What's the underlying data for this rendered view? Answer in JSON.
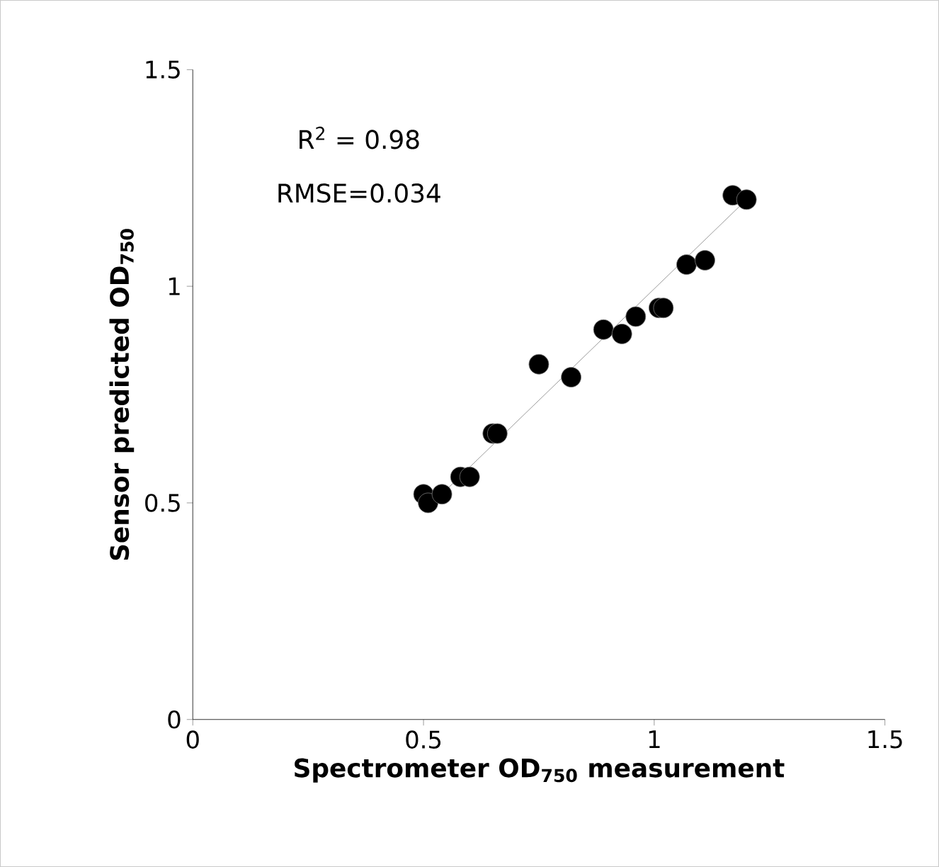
{
  "chart_data": {
    "type": "scatter",
    "xlabel": "Spectrometer OD$_{750}$ measurement",
    "ylabel": "Sensor predicted OD$_{750}$",
    "annotations": [
      "R$^{2}$ = 0.98",
      "RMSE=0.034"
    ],
    "xlim": [
      0,
      1.5
    ],
    "ylim": [
      0,
      1.5
    ],
    "xticks": [
      0,
      0.5,
      1,
      1.5
    ],
    "yticks": [
      0,
      0.5,
      1,
      1.5
    ],
    "grid": false,
    "series": [
      {
        "color": "#000000",
        "x": [
          0.5,
          0.51,
          0.54,
          0.58,
          0.6,
          0.65,
          0.66,
          0.75,
          0.82,
          0.89,
          0.93,
          0.96,
          1.01,
          1.02,
          1.07,
          1.11,
          1.17,
          1.2
        ],
        "values": [
          0.52,
          0.5,
          0.52,
          0.56,
          0.56,
          0.66,
          0.66,
          0.82,
          0.79,
          0.9,
          0.89,
          0.93,
          0.95,
          0.95,
          1.05,
          1.06,
          1.21,
          1.2
        ]
      },
      {
        "type": "line",
        "color": "#808080",
        "line_style": "solid",
        "x": [
          0.52,
          1.2
        ],
        "values": [
          0.5,
          1.2
        ]
      }
    ]
  }
}
